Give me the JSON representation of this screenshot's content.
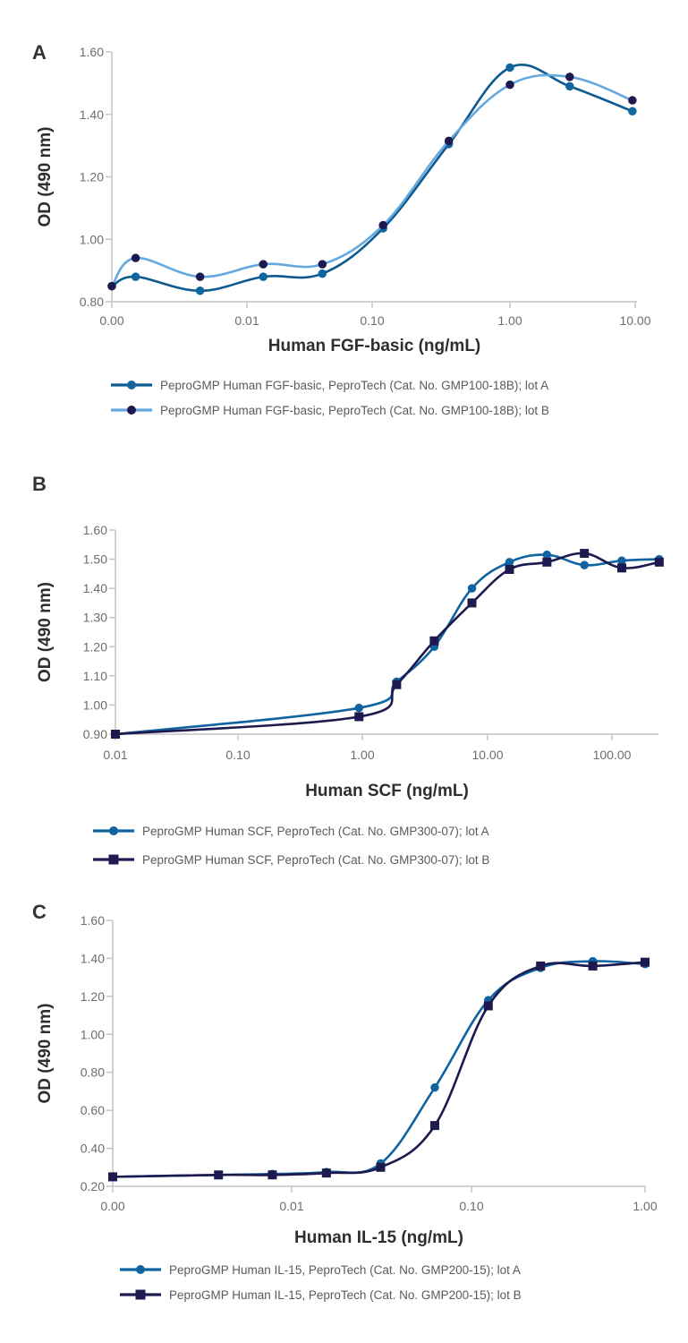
{
  "figure": {
    "panels": [
      "A",
      "B",
      "C"
    ]
  },
  "chart_data": [
    {
      "type": "line",
      "panel": "A",
      "title": "",
      "xlabel": "Human FGF-basic (ng/mL)",
      "ylabel": "OD (490 nm)",
      "xscale": "log",
      "x_ticks": [
        0.001,
        0.01,
        0.1,
        1,
        10
      ],
      "x_tick_labels": [
        "0.00",
        "0.01",
        "0.10",
        "1.00",
        "10.00"
      ],
      "y_ticks": [
        0.8,
        1.0,
        1.2,
        1.4,
        1.6
      ],
      "y_tick_labels": [
        "0.80",
        "1.00",
        "1.20",
        "1.40",
        "1.60"
      ],
      "ylim": [
        0.8,
        1.6
      ],
      "grid": false,
      "legend_position": "bottom",
      "x": [
        0.001,
        0.0015,
        0.0045,
        0.0135,
        0.04,
        0.12,
        0.36,
        1.0,
        3.0,
        9.5
      ],
      "series": [
        {
          "name": "PeproGMP Human FGF-basic, PeproTech (Cat. No. GMP100-18B); lot A",
          "line_color": "#0d5a91",
          "marker_color": "#10669e",
          "marker": "circle",
          "values": [
            0.85,
            0.88,
            0.835,
            0.88,
            0.89,
            1.035,
            1.305,
            1.55,
            1.49,
            1.41
          ]
        },
        {
          "name": "PeproGMP Human FGF-basic, PeproTech (Cat. No. GMP100-18B); lot B",
          "line_color": "#65a8de",
          "marker_color": "#1c1a4e",
          "marker": "circle",
          "values": [
            0.85,
            0.94,
            0.88,
            0.92,
            0.92,
            1.045,
            1.315,
            1.495,
            1.52,
            1.445
          ]
        }
      ]
    },
    {
      "type": "line",
      "panel": "B",
      "title": "",
      "xlabel": "Human SCF (ng/mL)",
      "ylabel": "OD (490 nm)",
      "xscale": "log",
      "x_ticks": [
        0.01,
        0.1,
        1,
        10,
        100
      ],
      "x_tick_labels": [
        "0.01",
        "0.10",
        "1.00",
        "10.00",
        "100.00"
      ],
      "y_ticks": [
        0.9,
        1.0,
        1.1,
        1.2,
        1.3,
        1.4,
        1.5,
        1.6
      ],
      "y_tick_labels": [
        "0.90",
        "1.00",
        "1.10",
        "1.20",
        "1.30",
        "1.40",
        "1.50",
        "1.60"
      ],
      "ylim": [
        0.9,
        1.6
      ],
      "xlim": [
        0.01,
        240
      ],
      "grid": false,
      "legend_position": "bottom",
      "x": [
        0.01,
        0.94,
        1.88,
        3.75,
        7.5,
        15,
        30,
        60,
        120,
        240
      ],
      "series": [
        {
          "name": "PeproGMP Human SCF, PeproTech (Cat. No. GMP300-07); lot A",
          "line_color": "#0f63a0",
          "marker_color": "#0f63a0",
          "marker": "circle",
          "values": [
            0.9,
            0.99,
            1.08,
            1.2,
            1.4,
            1.49,
            1.515,
            1.48,
            1.495,
            1.5
          ]
        },
        {
          "name": "PeproGMP Human SCF, PeproTech (Cat. No. GMP300-07); lot B",
          "line_color": "#1c1a4e",
          "marker_color": "#1c1a4e",
          "marker": "square",
          "values": [
            0.9,
            0.96,
            1.07,
            1.22,
            1.35,
            1.465,
            1.49,
            1.52,
            1.47,
            1.49
          ]
        }
      ]
    },
    {
      "type": "line",
      "panel": "C",
      "title": "",
      "xlabel": "Human IL-15 (ng/mL)",
      "ylabel": "OD (490 nm)",
      "xscale": "log",
      "x_ticks": [
        0.001,
        0.01,
        0.1,
        1
      ],
      "x_tick_labels": [
        "0.00",
        "0.01",
        "0.10",
        "1.00"
      ],
      "y_ticks": [
        0.2,
        0.4,
        0.6,
        0.8,
        1.0,
        1.2,
        1.4,
        1.6
      ],
      "y_tick_labels": [
        "0.20",
        "0.40",
        "0.60",
        "0.80",
        "1.00",
        "1.20",
        "1.40",
        "1.60"
      ],
      "ylim": [
        0.2,
        1.6
      ],
      "grid": false,
      "legend_position": "bottom",
      "x": [
        0.001,
        0.0039,
        0.0078,
        0.0156,
        0.03125,
        0.0625,
        0.125,
        0.25,
        0.5,
        1.0
      ],
      "series": [
        {
          "name": "PeproGMP Human IL-15, PeproTech (Cat. No. GMP200-15); lot A",
          "line_color": "#0f63a0",
          "marker_color": "#0f63a0",
          "marker": "circle",
          "values": [
            0.25,
            0.26,
            0.265,
            0.275,
            0.32,
            0.72,
            1.18,
            1.35,
            1.385,
            1.37
          ]
        },
        {
          "name": "PeproGMP Human IL-15, PeproTech (Cat. No. GMP200-15); lot B",
          "line_color": "#1c1a4e",
          "marker_color": "#1c1a4e",
          "marker": "square",
          "values": [
            0.25,
            0.26,
            0.26,
            0.27,
            0.3,
            0.52,
            1.15,
            1.36,
            1.36,
            1.38
          ]
        }
      ]
    }
  ]
}
